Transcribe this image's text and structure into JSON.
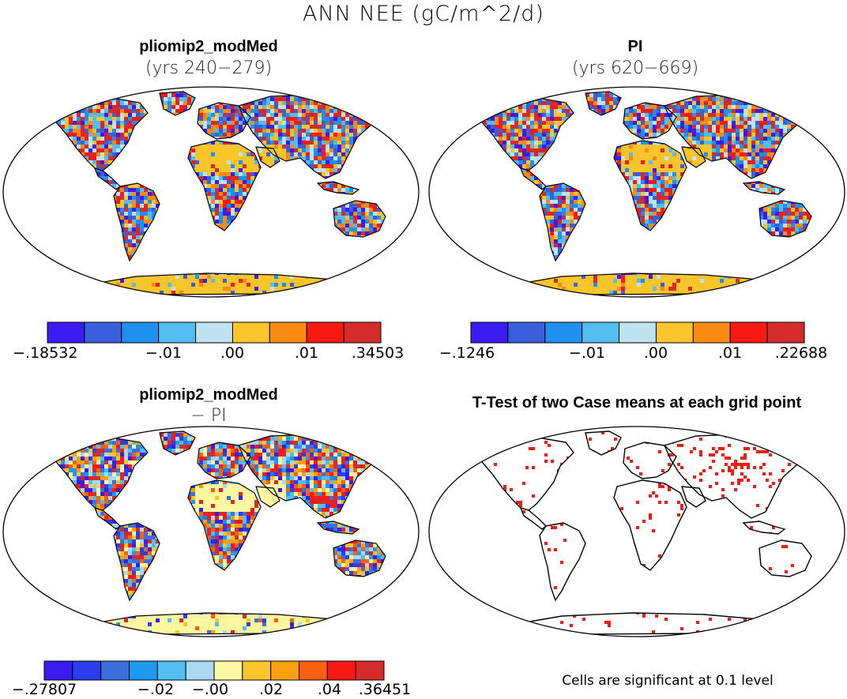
{
  "main_title": "ANN NEE (gC/m^2/d)",
  "panels": {
    "top_left": {
      "title": "pliomip2_modMed",
      "subtitle": "(yrs 240−279)"
    },
    "top_right": {
      "title": "PI",
      "subtitle": "(yrs 620−669)"
    },
    "bottom_left": {
      "title": "pliomip2_modMed",
      "subtitle": "− PI"
    },
    "bottom_right": {
      "title": "T-Test of two Case means at each grid point",
      "note": "Cells are significant at 0.1 level"
    }
  },
  "colorbars": {
    "top_left": {
      "colors": [
        "#3b1cf0",
        "#3a5fdc",
        "#1f8ff0",
        "#52bdf0",
        "#bfe2f0",
        "#f9c52b",
        "#f98a12",
        "#f81912",
        "#d62b2b"
      ],
      "labels": [
        "−.18532",
        "−.01",
        ".00",
        ".01",
        ".34503"
      ]
    },
    "top_right": {
      "colors": [
        "#3b1cf0",
        "#3a5fdc",
        "#1f8ff0",
        "#52bdf0",
        "#bfe2f0",
        "#f9c52b",
        "#f98a12",
        "#f81912",
        "#d62b2b"
      ],
      "labels": [
        "−.1246",
        "−.01",
        ".00",
        ".01",
        ".22688"
      ]
    },
    "bottom_left": {
      "colors": [
        "#3b1cf0",
        "#2e3cf0",
        "#3a6fdc",
        "#1f99f0",
        "#52bdf0",
        "#aad8f0",
        "#fbf7a0",
        "#f9c52b",
        "#f9a012",
        "#f96012",
        "#f81912",
        "#d62b2b"
      ],
      "labels": [
        "−.27807",
        "−.02",
        "−.00",
        ".02",
        ".04",
        ".36451"
      ]
    }
  }
}
